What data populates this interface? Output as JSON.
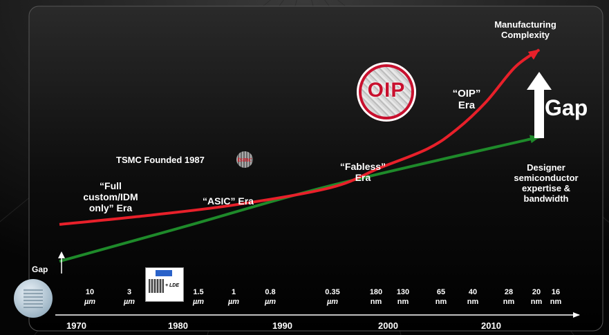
{
  "chart_data": {
    "type": "line",
    "title": "",
    "xlabel": "",
    "ylabel": "",
    "x_ticks": [
      "1970",
      "1980",
      "1990",
      "2000",
      "2010"
    ],
    "xlim": [
      1967,
      2021
    ],
    "process_nodes": [
      {
        "value": "10",
        "unit": "µm"
      },
      {
        "value": "3",
        "unit": "µm"
      },
      {
        "value": "1.5",
        "unit": "µm"
      },
      {
        "value": "1",
        "unit": "µm"
      },
      {
        "value": "0.8",
        "unit": "µm"
      },
      {
        "value": "0.35",
        "unit": "µm"
      },
      {
        "value": "180",
        "unit": "nm"
      },
      {
        "value": "130",
        "unit": "nm"
      },
      {
        "value": "65",
        "unit": "nm"
      },
      {
        "value": "40",
        "unit": "nm"
      },
      {
        "value": "28",
        "unit": "nm"
      },
      {
        "value": "20",
        "unit": "nm"
      },
      {
        "value": "16",
        "unit": "nm"
      }
    ],
    "series": [
      {
        "name": "Manufacturing Complexity",
        "color": "#e8202a",
        "x": [
          1967,
          1975,
          1985,
          1995,
          2000,
          2005,
          2008,
          2011,
          2014,
          2016.5
        ],
        "y": [
          1.0,
          1.4,
          2.0,
          2.9,
          3.9,
          4.9,
          5.9,
          7.3,
          9.1,
          10.0
        ]
      },
      {
        "name": "Designer semiconductor expertise & bandwidth",
        "color": "#1e8a2a",
        "x": [
          1967,
          1980,
          1995,
          2016.5
        ],
        "y": [
          -0.9,
          0.9,
          3.0,
          5.5
        ]
      }
    ],
    "annotations": {
      "full_custom": "“Full\ncustom/IDM\nonly” Era",
      "asic": "“ASIC” Era",
      "tsmc": "TSMC Founded 1987",
      "fabless": "“Fabless”\nEra",
      "oip_era": "“OIP”\nEra",
      "manufacturing": "Manufacturing\nComplexity",
      "designer": "Designer\nsemiconductor\nexpertise &\nbandwidth",
      "gap_big": "Gap",
      "gap_small": "Gap"
    }
  },
  "logos": {
    "oip": "OIP",
    "tsmc": "tsmc",
    "lde": "+ LDE"
  },
  "icons": {
    "gap_arrow": "up-arrow-icon",
    "axis_arrow": "right-arrow-icon"
  }
}
